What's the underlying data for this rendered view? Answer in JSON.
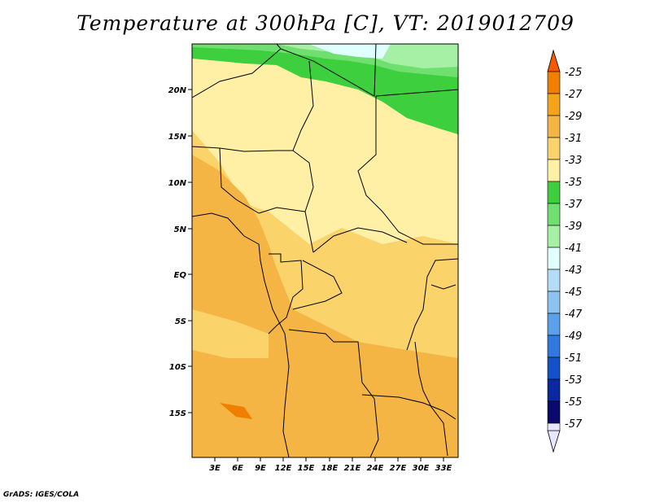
{
  "title": "Temperature at 300hPa [C], VT: 2019012709",
  "footer": "GrADS: IGES/COLA",
  "map": {
    "lat_labels": [
      "20N",
      "15N",
      "10N",
      "5N",
      "EQ",
      "5S",
      "10S",
      "15S"
    ],
    "lon_labels": [
      "3E",
      "6E",
      "9E",
      "12E",
      "15E",
      "18E",
      "21E",
      "24E",
      "27E",
      "30E",
      "33E"
    ],
    "colors": {
      "background_fill": "#fad36a",
      "dark_orange": "#f5b544",
      "pale_yellow": "#fff0a6",
      "green_dark": "#3ecf3e",
      "green_mid": "#6fe06f",
      "green_light": "#a6f0a6",
      "cyan_pale": "#e0ffff",
      "border": "#000000"
    }
  },
  "colorbar": {
    "labels": [
      "-25",
      "-27",
      "-29",
      "-31",
      "-33",
      "-35",
      "-37",
      "-39",
      "-41",
      "-43",
      "-45",
      "-47",
      "-49",
      "-51",
      "-53",
      "-55",
      "-57"
    ],
    "colors": [
      "#f55a00",
      "#f07f00",
      "#f5a319",
      "#f5b544",
      "#fad36a",
      "#fff0a6",
      "#3ecf3e",
      "#6fe06f",
      "#a6f0a6",
      "#e0ffff",
      "#b4dcf5",
      "#8cc3f0",
      "#5aa0eb",
      "#3278e1",
      "#1450c8",
      "#0a28a0",
      "#0a0a6e",
      "#e6e6ff"
    ]
  }
}
